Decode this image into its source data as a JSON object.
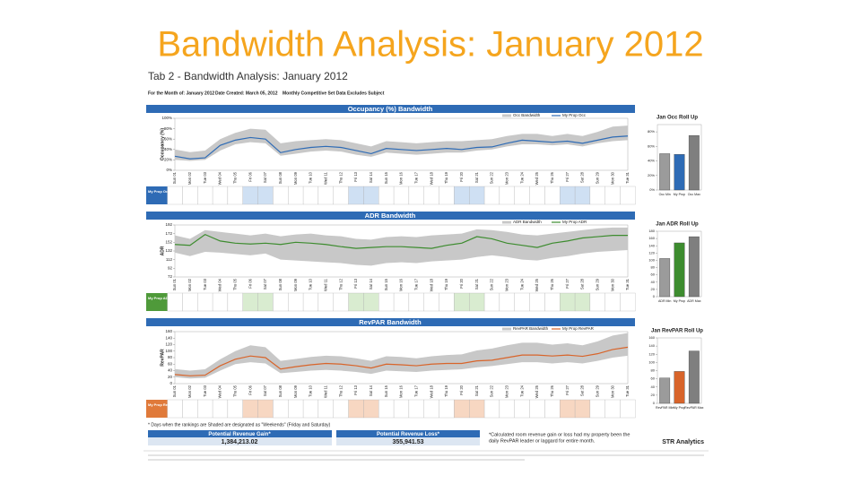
{
  "title": "Bandwidth Analysis: January 2012",
  "report": {
    "title": "Tab 2 - Bandwidth Analysis: January 2012",
    "meta": [
      "For the Month of: January 2012",
      "Date Created: March 05, 2012",
      "Monthly Competitive Set Data Excludes Subject"
    ]
  },
  "days": [
    "Sun 01",
    "Mon 02",
    "Tue 03",
    "Wed 04",
    "Thu 05",
    "Fri 06",
    "Sat 07",
    "Sun 08",
    "Mon 09",
    "Tue 10",
    "Wed 11",
    "Thu 12",
    "Fri 13",
    "Sat 14",
    "Sun 15",
    "Mon 16",
    "Tue 17",
    "Wed 18",
    "Thu 19",
    "Fri 20",
    "Sat 21",
    "Sun 22",
    "Mon 23",
    "Tue 24",
    "Wed 25",
    "Thu 26",
    "Fri 27",
    "Sat 28",
    "Sun 29",
    "Mon 30",
    "Tue 31"
  ],
  "weekend_days": [
    5,
    6,
    12,
    13,
    19,
    20,
    26,
    27
  ],
  "panels": [
    {
      "title": "Occupancy (%) Bandwidth",
      "y_label": "Occupancy (%)",
      "color": "#2e6bb5",
      "rank_color": "#2e6bb5",
      "shade": "#cfe0f3",
      "legend": [
        "Occ Bandwidth",
        "My Prop Occ"
      ],
      "rank_label": "My Prop Occ Rank",
      "ylim": [
        0,
        100
      ],
      "yticks": [
        {
          "value": 0,
          "label": "0%"
        },
        {
          "value": 20,
          "label": "20%"
        },
        {
          "value": 40,
          "label": "40%"
        },
        {
          "value": 60,
          "label": "60%"
        },
        {
          "value": 80,
          "label": "80%"
        },
        {
          "value": 100,
          "label": "100%"
        }
      ],
      "line": [
        27,
        22,
        24,
        48,
        58,
        63,
        60,
        34,
        40,
        44,
        46,
        44,
        38,
        32,
        42,
        40,
        38,
        40,
        42,
        40,
        44,
        45,
        52,
        58,
        56,
        54,
        56,
        52,
        58,
        64,
        66
      ],
      "band_low": [
        20,
        18,
        20,
        38,
        50,
        54,
        52,
        28,
        32,
        36,
        38,
        36,
        30,
        26,
        34,
        32,
        30,
        32,
        34,
        34,
        38,
        40,
        46,
        50,
        50,
        48,
        50,
        46,
        52,
        56,
        58
      ],
      "band_high": [
        40,
        35,
        38,
        60,
        72,
        80,
        78,
        52,
        56,
        58,
        60,
        58,
        52,
        46,
        56,
        54,
        52,
        54,
        56,
        56,
        58,
        60,
        66,
        70,
        70,
        66,
        70,
        66,
        74,
        84,
        86
      ],
      "rollup": {
        "title": "Jan Occ Roll Up",
        "categories": [
          "Occ Min",
          "My Prop",
          "Occ Max"
        ],
        "values": [
          50,
          49,
          75
        ],
        "colors": [
          "#9b9b9b",
          "#2e6bb5",
          "#7f7f7f"
        ],
        "ylim": [
          0,
          90
        ],
        "yticks": [
          {
            "value": 0,
            "label": "0%"
          },
          {
            "value": 20,
            "label": "20%"
          },
          {
            "value": 40,
            "label": "40%"
          },
          {
            "value": 60,
            "label": "60%"
          },
          {
            "value": 80,
            "label": "80%"
          }
        ]
      }
    },
    {
      "title": "ADR Bandwidth",
      "y_label": "ADR",
      "color": "#3d8c2f",
      "rank_color": "#4f9a3a",
      "shade": "#d9ecd0",
      "legend": [
        "ADR Bandwidth",
        "My Prop ADR"
      ],
      "rank_label": "My Prop ADR Rank",
      "ylim": [
        72,
        192
      ],
      "yticks": [
        72,
        92,
        112,
        132,
        152,
        172,
        192
      ],
      "line": [
        147,
        145,
        170,
        155,
        150,
        148,
        150,
        147,
        152,
        150,
        147,
        142,
        138,
        140,
        142,
        142,
        140,
        138,
        145,
        150,
        165,
        160,
        150,
        145,
        140,
        150,
        155,
        162,
        165,
        168,
        168
      ],
      "band_low": [
        128,
        120,
        130,
        128,
        125,
        122,
        126,
        112,
        110,
        108,
        106,
        104,
        100,
        98,
        104,
        106,
        104,
        108,
        110,
        112,
        118,
        122,
        118,
        112,
        110,
        116,
        120,
        126,
        130,
        132,
        134
      ],
      "band_high": [
        168,
        160,
        180,
        176,
        172,
        168,
        172,
        166,
        170,
        172,
        168,
        166,
        160,
        158,
        164,
        166,
        164,
        168,
        170,
        172,
        182,
        180,
        176,
        170,
        168,
        172,
        176,
        180,
        184,
        186,
        186
      ],
      "rollup": {
        "title": "Jan ADR Roll Up",
        "categories": [
          "ADR Min",
          "My Prop",
          "ADR Max"
        ],
        "values": [
          105,
          148,
          165
        ],
        "colors": [
          "#9b9b9b",
          "#3d8c2f",
          "#7f7f7f"
        ],
        "ylim": [
          0,
          180
        ],
        "yticks": [
          0,
          20,
          40,
          60,
          80,
          100,
          120,
          140,
          160,
          180
        ]
      }
    },
    {
      "title": "RevPAR Bandwidth",
      "y_label": "RevPAR",
      "color": "#d8642a",
      "rank_color": "#e07a3a",
      "shade": "#f7d7c2",
      "legend": [
        "RevPAR Bandwidth",
        "My Prop RevPAR"
      ],
      "rank_label": "My Prop RevPAR Rank",
      "ylim": [
        0,
        160
      ],
      "yticks": [
        0,
        20,
        40,
        60,
        80,
        100,
        120,
        140,
        160
      ],
      "line": [
        28,
        24,
        26,
        55,
        75,
        85,
        80,
        45,
        52,
        58,
        62,
        60,
        55,
        48,
        60,
        58,
        55,
        60,
        62,
        62,
        70,
        72,
        80,
        88,
        88,
        85,
        88,
        84,
        92,
        105,
        112
      ],
      "band_low": [
        20,
        16,
        18,
        40,
        60,
        66,
        62,
        32,
        36,
        40,
        42,
        40,
        36,
        30,
        40,
        38,
        36,
        40,
        42,
        44,
        50,
        54,
        60,
        66,
        66,
        62,
        66,
        62,
        70,
        80,
        86
      ],
      "band_high": [
        45,
        40,
        44,
        75,
        100,
        118,
        112,
        70,
        76,
        82,
        86,
        84,
        78,
        70,
        84,
        82,
        78,
        84,
        88,
        90,
        102,
        108,
        118,
        126,
        126,
        120,
        124,
        118,
        130,
        148,
        156
      ],
      "rollup": {
        "title": "Jan RevPAR Roll Up",
        "categories": [
          "RevPAR Min",
          "My Prop",
          "RevPAR Max"
        ],
        "values": [
          62,
          78,
          128
        ],
        "colors": [
          "#9b9b9b",
          "#d8642a",
          "#7f7f7f"
        ],
        "ylim": [
          0,
          160
        ],
        "yticks": [
          0,
          20,
          40,
          60,
          80,
          100,
          120,
          140,
          160
        ]
      }
    }
  ],
  "weekend_note": "* Days when the rankings are Shaded are designated as \"Weekends\" (Friday and Saturday)",
  "gain": {
    "label": "Potential Revenue Gain*",
    "value": "1,384,213.02"
  },
  "loss": {
    "label": "Potential Revenue Loss*",
    "value": "355,941.53"
  },
  "note": [
    "*Calculated room revenue gain or loss had my property been the",
    "daily RevPAR leader or laggard for entire month."
  ],
  "brand": "STR Analytics"
}
